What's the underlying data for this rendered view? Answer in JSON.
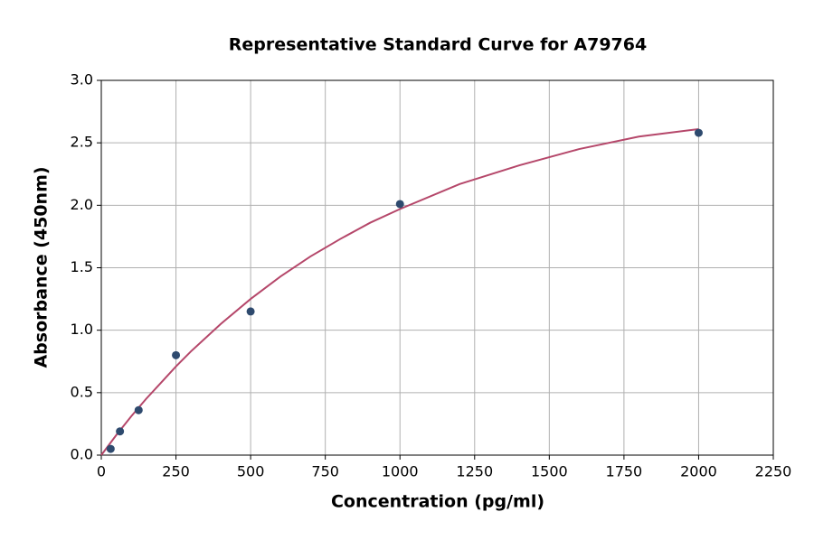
{
  "chart_data": {
    "type": "scatter",
    "title": "Representative Standard Curve for A79764",
    "x_label": "Concentration (pg/ml)",
    "y_label": "Absorbance (450nm)",
    "points": {
      "color": "#2e4a6e",
      "x": [
        31.25,
        62.5,
        125,
        250,
        500,
        1000,
        2000
      ],
      "values": [
        0.05,
        0.19,
        0.36,
        0.8,
        1.15,
        2.01,
        2.58
      ]
    },
    "curve": {
      "color": "#b5476a",
      "x": [
        0,
        50,
        100,
        150,
        200,
        250,
        300,
        400,
        500,
        600,
        700,
        800,
        900,
        1000,
        1200,
        1400,
        1600,
        1800,
        2000
      ],
      "values": [
        0,
        0.16,
        0.31,
        0.45,
        0.58,
        0.71,
        0.83,
        1.05,
        1.25,
        1.43,
        1.59,
        1.73,
        1.86,
        1.97,
        2.17,
        2.32,
        2.45,
        2.55,
        2.61
      ]
    },
    "xlim": [
      0,
      2250
    ],
    "xticks": [
      0,
      250,
      500,
      750,
      1000,
      1250,
      1500,
      1750,
      2000,
      2250
    ],
    "ylim": [
      0,
      3
    ],
    "yticks": [
      {
        "value": 0,
        "label": "0.0"
      },
      0.5,
      {
        "value": 1,
        "label": "1.0"
      },
      1.5,
      {
        "value": 2,
        "label": "2.0"
      },
      2.5,
      {
        "value": 3,
        "label": "3.0"
      }
    ],
    "grid": true
  }
}
